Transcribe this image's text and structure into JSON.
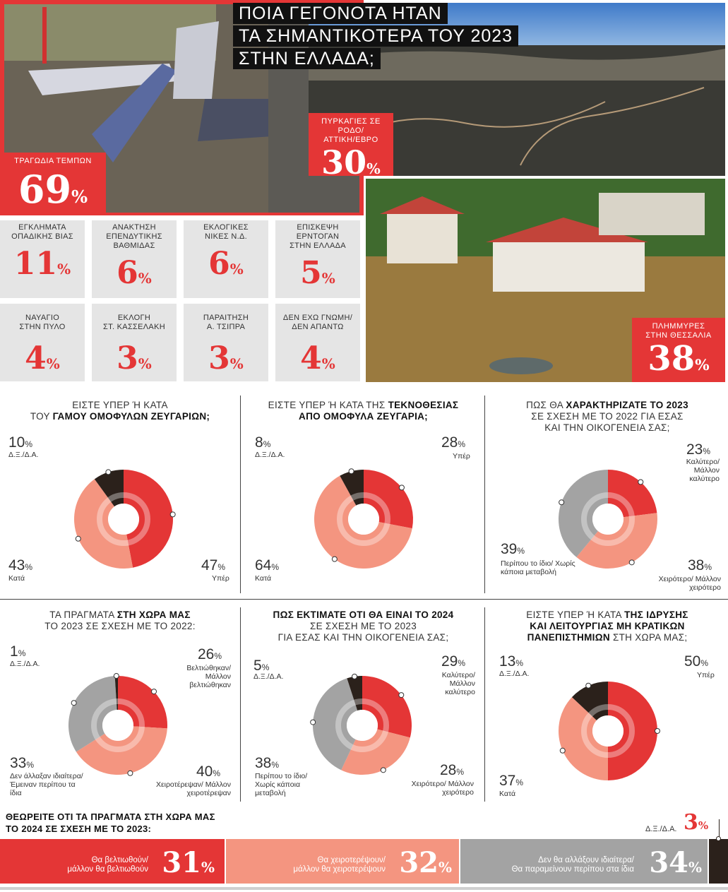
{
  "header": {
    "title_lines": [
      "ΠΟΙΑ ΓΕΓΟΝΟΤΑ ΗΤΑΝ",
      "ΤΑ ΣΗΜΑΝΤΙΚΟΤΕΡΑ ΤΟΥ 2023",
      "ΣΤΗΝ ΕΛΛΑΔΑ;"
    ]
  },
  "events": {
    "tempi": {
      "label": "ΤΡΑΓΩΔΙΑ ΤΕΜΠΩΝ",
      "value": "69",
      "unit": "%"
    },
    "fires": {
      "label1": "ΠΥΡΚΑΓΙΕΣ ΣΕ ΡΟΔΟ/",
      "label2": "ΑΤΤΙΚΗ/ΕΒΡΟ",
      "value": "30",
      "unit": "%"
    },
    "floods": {
      "label1": "ΠΛΗΜΜΥΡΕΣ",
      "label2": "ΣΤΗΝ ΘΕΣΣΑΛΙΑ",
      "value": "38",
      "unit": "%"
    },
    "tiles": [
      {
        "l1": "ΕΓΚΛΗΜΑΤΑ",
        "l2": "ΟΠΑΔΙΚΗΣ ΒΙΑΣ",
        "l3": "",
        "value": "11",
        "unit": "%"
      },
      {
        "l1": "ΑΝΑΚΤΗΣΗ",
        "l2": "ΕΠΕΝΔΥΤΙΚΗΣ",
        "l3": "ΒΑΘΜΙΔΑΣ",
        "value": "6",
        "unit": "%"
      },
      {
        "l1": "ΕΚΛΟΓΙΚΕΣ",
        "l2": "ΝΙΚΕΣ Ν.Δ.",
        "l3": "",
        "value": "6",
        "unit": "%"
      },
      {
        "l1": "ΕΠΙΣΚΕΨΗ",
        "l2": "ΕΡΝΤΟΓΑΝ",
        "l3": "ΣΤΗΝ ΕΛΛΑΔΑ",
        "value": "5",
        "unit": "%"
      },
      {
        "l1": "ΝΑΥΑΓΙΟ",
        "l2": "ΣΤΗΝ ΠΥΛΟ",
        "l3": "",
        "value": "4",
        "unit": "%"
      },
      {
        "l1": "ΕΚΛΟΓΗ",
        "l2": "ΣΤ. ΚΑΣΣΕΛΑΚΗ",
        "l3": "",
        "value": "3",
        "unit": "%"
      },
      {
        "l1": "ΠΑΡΑΙΤΗΣΗ",
        "l2": "Α. ΤΣΙΠΡΑ",
        "l3": "",
        "value": "3",
        "unit": "%"
      },
      {
        "l1": "ΔΕΝ ΕΧΩ ΓΝΩΜΗ/",
        "l2": "ΔΕΝ ΑΠΑΝΤΩ",
        "l3": "",
        "value": "4",
        "unit": "%"
      }
    ]
  },
  "colors": {
    "red": "#e43636",
    "salmon": "#f49580",
    "gray": "#a3a3a3",
    "dark": "#2b211b",
    "tile": "#e5e5e5"
  },
  "chart_data": [
    {
      "type": "pie",
      "title_a": "ΕΙΣΤΕ ΥΠΕΡ Ή ΚΑΤΑ",
      "title_b": "ΤΟΥ ",
      "title_bold": "ΓΑΜΟΥ ΟΜΟΦΥΛΩΝ ΖΕΥΓΑΡΙΩΝ;",
      "slices": [
        {
          "label": "Υπέρ",
          "value": 47
        },
        {
          "label": "Κατά",
          "value": 43
        },
        {
          "label": "Δ.Ξ./Δ.Α.",
          "value": 10
        }
      ]
    },
    {
      "type": "pie",
      "title_a": "ΕΙΣΤΕ ΥΠΕΡ Ή ΚΑΤΑ ΤΗΣ ",
      "title_bold_a": "ΤΕΚΝΟΘΕΣΙΑΣ",
      "title_bold": "ΑΠΟ ΟΜΟΦΥΛΑ ΖΕΥΓΑΡΙΑ;",
      "slices": [
        {
          "label": "Υπέρ",
          "value": 28
        },
        {
          "label": "Κατά",
          "value": 64
        },
        {
          "label": "Δ.Ξ./Δ.Α.",
          "value": 8
        }
      ]
    },
    {
      "type": "pie",
      "title_a": "ΠΩΣ ΘΑ ",
      "title_bold_a": "ΧΑΡΑΚΤΗΡΙΖΑΤΕ ΤΟ 2023",
      "title_b": "ΣΕ ΣΧΕΣΗ ΜΕ ΤΟ 2022 ΓΙΑ ΕΣΑΣ",
      "title_c": "ΚΑΙ ΤΗΝ ΟΙΚΟΓΕΝΕΙΑ ΣΑΣ;",
      "slices": [
        {
          "label": "Καλύτερο/ Μάλλον καλύτερο",
          "value": 23
        },
        {
          "label": "Χειρότερο/ Μάλλον χειρότερο",
          "value": 38
        },
        {
          "label": "Περίπου το ίδιο/ Χωρίς κάποια μεταβολή",
          "value": 39
        }
      ]
    },
    {
      "type": "pie",
      "title_a": "ΤΑ ΠΡΑΓΜΑΤΑ ",
      "title_bold_a": "ΣΤΗ ΧΩΡΑ ΜΑΣ",
      "title_b": "ΤΟ 2023 ΣΕ ΣΧΕΣΗ ΜΕ ΤΟ 2022:",
      "slices": [
        {
          "label": "Βελτιώθηκαν/ Μάλλον βελτιώθηκαν",
          "value": 26
        },
        {
          "label": "Χειροτέρεψαν/ Μάλλον χειροτέρεψαν",
          "value": 40
        },
        {
          "label": "Δεν άλλαξαν ιδιαίτερα/ Έμειναν περίπου τα ίδια",
          "value": 33
        },
        {
          "label": "Δ.Ξ./Δ.Α.",
          "value": 1
        }
      ]
    },
    {
      "type": "pie",
      "title_bold_a": "ΠΩΣ ΕΚΤΙΜΑΤΕ ΟΤΙ ΘΑ ΕΙΝΑΙ ΤΟ 2024",
      "title_b": "ΣΕ ΣΧΕΣΗ ΜΕ ΤΟ 2023",
      "title_c": "ΓΙΑ ΕΣΑΣ ΚΑΙ ΤΗΝ ΟΙΚΟΓΕΝΕΙΑ ΣΑΣ;",
      "slices": [
        {
          "label": "Καλύτερο/ Μάλλον καλύτερο",
          "value": 29
        },
        {
          "label": "Χειρότερο/ Μάλλον χειρότερο",
          "value": 28
        },
        {
          "label": "Περίπου το ίδιο/ Χωρίς κάποια μεταβολή",
          "value": 38
        },
        {
          "label": "Δ.Ξ./Δ.Α.",
          "value": 5
        }
      ]
    },
    {
      "type": "pie",
      "title_a": "ΕΙΣΤΕ ΥΠΕΡ Ή ΚΑΤΑ ",
      "title_bold_a": "ΤΗΣ ΙΔΡΥΣΗΣ",
      "title_bold_b": "ΚΑΙ ΛΕΙΤΟΥΡΓΙΑΣ ΜΗ ΚΡΑΤΙΚΩΝ",
      "title_bold_c": "ΠΑΝΕΠΙΣΤΗΜΙΩΝ",
      "title_c": " ΣΤΗ ΧΩΡΑ ΜΑΣ;",
      "slices": [
        {
          "label": "Υπέρ",
          "value": 50
        },
        {
          "label": "Κατά",
          "value": 37
        },
        {
          "label": "Δ.Ξ./Δ.Α.",
          "value": 13
        }
      ]
    },
    {
      "type": "bar",
      "title1": "ΘΕΩΡΕΙΤΕ ΟΤΙ ΤΑ ΠΡΑΓΜΑΤΑ ΣΤΗ ΧΩΡΑ ΜΑΣ",
      "title2": "ΤΟ 2024 ΣΕ ΣΧΕΣΗ ΜΕ ΤΟ 2023:",
      "segments": [
        {
          "l1": "Θα βελτιωθούν/",
          "l2": "μάλλον θα βελτιωθούν",
          "value": 31
        },
        {
          "l1": "Θα χειροτερέψουν/",
          "l2": "μάλλον θα χειροτερέψουν",
          "value": 32
        },
        {
          "l1": "Δεν θα αλλάξουν ιδιαίτερα/",
          "l2": "Θα παραμείνουν περίπου στα ίδια",
          "value": 34
        },
        {
          "l1": "Δ.Ξ./Δ.Α.",
          "l2": "",
          "value": 3
        }
      ]
    }
  ],
  "pct_unit": "%"
}
